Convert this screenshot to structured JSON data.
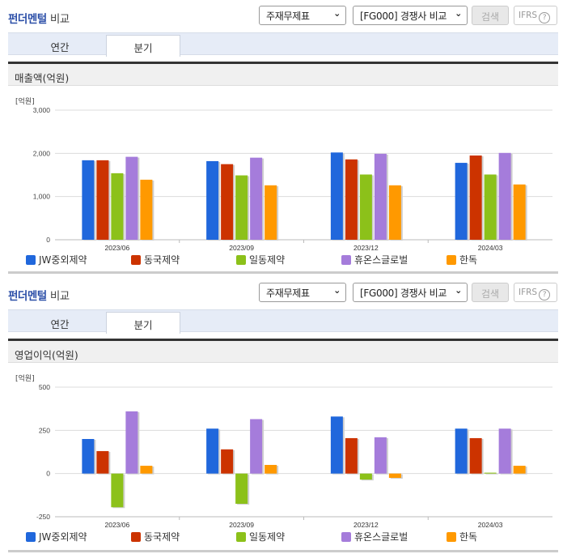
{
  "panels": [
    {
      "title_blue": "펀더멘털",
      "title_dark": "비교",
      "select_statement": "주재무제표",
      "select_compare": "[FG000] 경쟁사 비교",
      "search_label": "검색",
      "ifrs_label": "IFRS",
      "ifrs_help": "?",
      "tabs": [
        {
          "label": "연간",
          "active": false
        },
        {
          "label": "분기",
          "active": true
        }
      ],
      "section_title": "매출액(억원)",
      "unit_label": "[억원]"
    },
    {
      "title_blue": "펀더멘털",
      "title_dark": "비교",
      "select_statement": "주재무제표",
      "select_compare": "[FG000] 경쟁사 비교",
      "search_label": "검색",
      "ifrs_label": "IFRS",
      "ifrs_help": "?",
      "tabs": [
        {
          "label": "연간",
          "active": false
        },
        {
          "label": "분기",
          "active": true
        }
      ],
      "section_title": "영업이익(억원)",
      "unit_label": "[억원]"
    }
  ],
  "colors": {
    "JW중외제약": "#2067dc",
    "동국제약": "#cc3300",
    "일동제약": "#8cc11a",
    "휴온스글로벌": "#a57cdb",
    "한독": "#ff9900"
  },
  "chart_data": [
    {
      "type": "bar",
      "title": "매출액(억원)",
      "xlabel": "",
      "ylabel": "[억원]",
      "categories": [
        "2023/06",
        "2023/09",
        "2023/12",
        "2024/03"
      ],
      "ylim": [
        0,
        3000
      ],
      "yticks": [
        0,
        1000,
        2000,
        3000
      ],
      "ytick_labels": [
        "0",
        "1,000",
        "2,000",
        "3,000"
      ],
      "grid": true,
      "legend_position": "bottom",
      "series": [
        {
          "name": "JW중외제약",
          "color": "#2067dc",
          "values": [
            1840,
            1820,
            2020,
            1780
          ]
        },
        {
          "name": "동국제약",
          "color": "#cc3300",
          "values": [
            1840,
            1750,
            1860,
            1950
          ]
        },
        {
          "name": "일동제약",
          "color": "#8cc11a",
          "values": [
            1540,
            1490,
            1510,
            1510
          ]
        },
        {
          "name": "휴온스글로벌",
          "color": "#a57cdb",
          "values": [
            1920,
            1900,
            1990,
            2010
          ]
        },
        {
          "name": "한독",
          "color": "#ff9900",
          "values": [
            1390,
            1260,
            1260,
            1280
          ]
        }
      ]
    },
    {
      "type": "bar",
      "title": "영업이익(억원)",
      "xlabel": "",
      "ylabel": "[억원]",
      "categories": [
        "2023/06",
        "2023/09",
        "2023/12",
        "2024/03"
      ],
      "ylim": [
        -250,
        500
      ],
      "yticks": [
        -250,
        0,
        250,
        500
      ],
      "ytick_labels": [
        "-250",
        "0",
        "250",
        "500"
      ],
      "grid": true,
      "legend_position": "bottom",
      "series": [
        {
          "name": "JW중외제약",
          "color": "#2067dc",
          "values": [
            200,
            260,
            330,
            260
          ]
        },
        {
          "name": "동국제약",
          "color": "#cc3300",
          "values": [
            130,
            140,
            205,
            205
          ]
        },
        {
          "name": "일동제약",
          "color": "#8cc11a",
          "values": [
            -195,
            -175,
            -35,
            5
          ]
        },
        {
          "name": "휴온스글로벌",
          "color": "#a57cdb",
          "values": [
            360,
            315,
            210,
            260
          ]
        },
        {
          "name": "한독",
          "color": "#ff9900",
          "values": [
            45,
            50,
            -25,
            45
          ]
        }
      ]
    }
  ]
}
